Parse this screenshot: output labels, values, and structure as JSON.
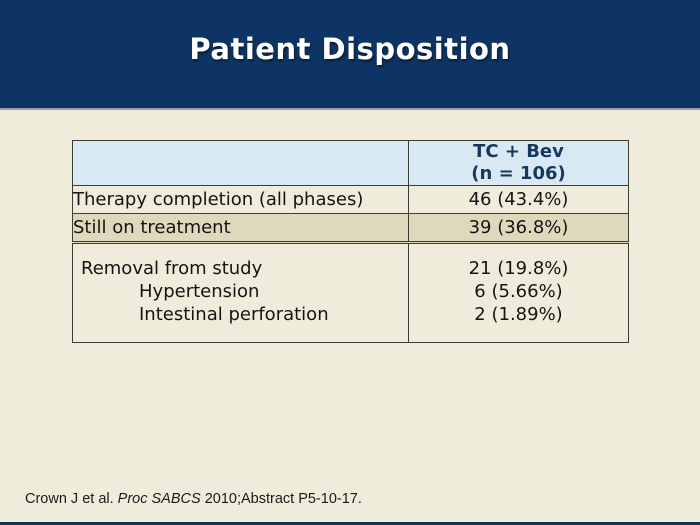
{
  "slide": {
    "title": "Patient Disposition"
  },
  "table": {
    "header": {
      "arm_line1": "TC + Bev",
      "arm_line2": "(n = 106)"
    },
    "rows": [
      {
        "label": "Therapy completion (all phases)",
        "value": "46 (43.4%)"
      },
      {
        "label": "Still on treatment",
        "value": "39 (36.8%)"
      }
    ],
    "removal": {
      "label": "Removal from study",
      "value": "21 (19.8%)",
      "sub_rows": [
        {
          "label": "Hypertension",
          "value": "6 (5.66%)"
        },
        {
          "label": "Intestinal perforation",
          "value": "2 (1.89%)"
        }
      ]
    }
  },
  "footer": {
    "citation_prefix": "Crown J et al. ",
    "citation_italic": "Proc SABCS",
    "citation_suffix": " 2010;Abstract P5-10-17."
  },
  "colors": {
    "band_navy": "#0d3464",
    "band_separator": "#95a3b5",
    "page_cream": "#f0ecdb",
    "header_cell_blue": "#d8e9f3",
    "row_tan": "#dfd8bc",
    "table_border": "#3c3c34",
    "header_text_navy": "#17375e",
    "title_white": "#ffffff"
  }
}
